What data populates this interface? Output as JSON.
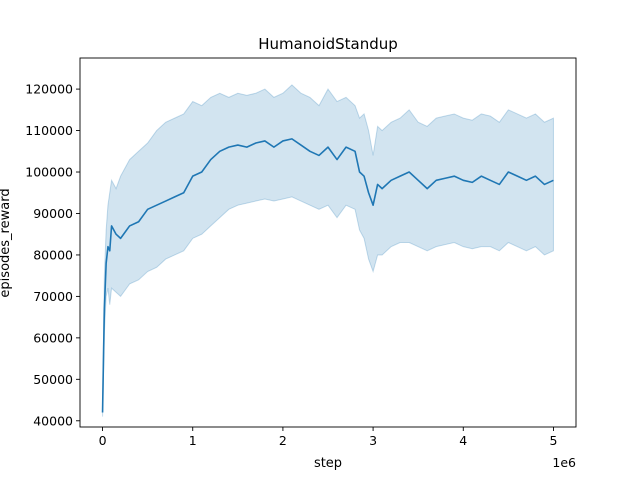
{
  "chart_data": {
    "type": "line",
    "title": "HumanoidStandup",
    "xlabel": "step",
    "ylabel": "episodes_reward",
    "x_offset_label": "1e6",
    "xlim": [
      -250000,
      5250000
    ],
    "ylim": [
      38500,
      127500
    ],
    "x_ticks": [
      0,
      1000000,
      2000000,
      3000000,
      4000000,
      5000000
    ],
    "x_tick_labels": [
      "0",
      "1",
      "2",
      "3",
      "4",
      "5"
    ],
    "y_ticks": [
      40000,
      50000,
      60000,
      70000,
      80000,
      90000,
      100000,
      110000,
      120000
    ],
    "y_tick_labels": [
      "40000",
      "50000",
      "60000",
      "70000",
      "80000",
      "90000",
      "100000",
      "110000",
      "120000"
    ],
    "grid": false,
    "legend": "none",
    "series": [
      {
        "color": "#1f77b4",
        "band_color": "#1f77b4",
        "band_opacity": 0.2,
        "x": [
          0,
          20000,
          40000,
          60000,
          80000,
          100000,
          150000,
          200000,
          300000,
          400000,
          500000,
          600000,
          700000,
          800000,
          900000,
          1000000,
          1100000,
          1200000,
          1300000,
          1400000,
          1500000,
          1600000,
          1700000,
          1800000,
          1900000,
          2000000,
          2100000,
          2200000,
          2300000,
          2400000,
          2500000,
          2600000,
          2700000,
          2800000,
          2850000,
          2900000,
          2950000,
          3000000,
          3050000,
          3100000,
          3200000,
          3300000,
          3400000,
          3500000,
          3600000,
          3700000,
          3800000,
          3900000,
          4000000,
          4100000,
          4200000,
          4300000,
          4400000,
          4500000,
          4600000,
          4700000,
          4800000,
          4900000,
          5000000
        ],
        "y": [
          42000,
          67000,
          78000,
          82000,
          81000,
          87000,
          85000,
          84000,
          87000,
          88000,
          91000,
          92000,
          93000,
          94000,
          95000,
          99000,
          100000,
          103000,
          105000,
          106000,
          106500,
          106000,
          107000,
          107500,
          106000,
          107500,
          108000,
          106500,
          105000,
          104000,
          106000,
          103000,
          106000,
          105000,
          100000,
          99000,
          95000,
          92000,
          97000,
          96000,
          98000,
          99000,
          100000,
          98000,
          96000,
          98000,
          98500,
          99000,
          98000,
          97500,
          99000,
          98000,
          97000,
          100000,
          99000,
          98000,
          99000,
          97000,
          98000
        ],
        "upper": [
          43000,
          75000,
          86000,
          92000,
          95000,
          98000,
          96000,
          99000,
          103000,
          105000,
          107000,
          110000,
          112000,
          113000,
          114000,
          117000,
          116000,
          118000,
          119000,
          118000,
          119000,
          118500,
          119000,
          120000,
          118000,
          119000,
          121000,
          119000,
          118000,
          116000,
          120000,
          117000,
          118000,
          116000,
          113000,
          114000,
          110000,
          104000,
          111000,
          110000,
          112000,
          113000,
          115000,
          112000,
          111000,
          113000,
          113500,
          114000,
          113000,
          112500,
          114000,
          113500,
          112000,
          115000,
          114000,
          113000,
          114000,
          112000,
          113000
        ],
        "lower": [
          41000,
          61000,
          70000,
          72000,
          68000,
          72000,
          71000,
          70000,
          73000,
          74000,
          76000,
          77000,
          79000,
          80000,
          81000,
          84000,
          85000,
          87000,
          89000,
          91000,
          92000,
          92500,
          93000,
          93500,
          93000,
          93500,
          94000,
          93000,
          92000,
          91000,
          92000,
          89000,
          92000,
          91000,
          86000,
          84000,
          79000,
          76000,
          80000,
          80000,
          82000,
          83000,
          83000,
          82000,
          81000,
          82000,
          82500,
          83000,
          82000,
          81500,
          82000,
          82000,
          81000,
          83000,
          82000,
          81000,
          82000,
          80000,
          81000
        ]
      }
    ]
  }
}
